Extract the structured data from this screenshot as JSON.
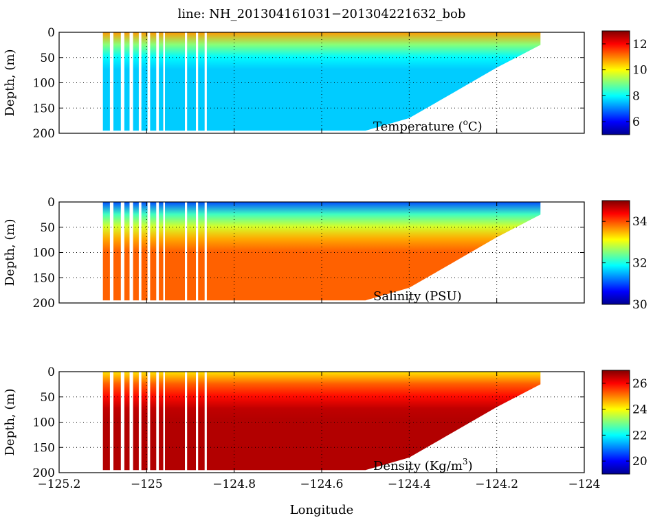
{
  "title": "line: NH_201304161031−201304221632_bob",
  "xlabel": "Longitude",
  "chart_data": [
    {
      "type": "heatmap",
      "variable": "Temperature",
      "label": "Temperature (°C)",
      "label_main": "Temperature (",
      "label_sup": "o",
      "label_tail": "C)",
      "ylabel": "Depth, (m)",
      "xlim": [
        -125.2,
        -124.0
      ],
      "ylim": [
        200,
        0
      ],
      "xticks": [
        -125.2,
        -125.0,
        -124.8,
        -124.6,
        -124.4,
        -124.2,
        -124.0
      ],
      "xtick_labels": [
        "−125.2",
        "−125",
        "−124.8",
        "−124.6",
        "−124.4",
        "−124.2",
        "−124"
      ],
      "yticks": [
        0,
        50,
        100,
        150,
        200
      ],
      "ytick_labels": [
        "0",
        "50",
        "100",
        "150",
        "200"
      ],
      "colorbar": {
        "range": [
          5,
          13
        ],
        "ticks": [
          6,
          8,
          10,
          12
        ],
        "tick_labels": [
          "6",
          "8",
          "10",
          "12"
        ]
      },
      "surface_value": 10.8,
      "deep_value": 7.6,
      "gradient_depth": 60
    },
    {
      "type": "heatmap",
      "variable": "Salinity",
      "label": "Salinity (PSU)",
      "label_main": "Salinity (PSU)",
      "label_sup": "",
      "label_tail": "",
      "ylabel": "Depth, (m)",
      "xlim": [
        -125.2,
        -124.0
      ],
      "ylim": [
        200,
        0
      ],
      "xticks": [
        -125.2,
        -125.0,
        -124.8,
        -124.6,
        -124.4,
        -124.2,
        -124.0
      ],
      "xtick_labels": [
        "−125.2",
        "−125",
        "−124.8",
        "−124.6",
        "−124.4",
        "−124.2",
        "−124"
      ],
      "yticks": [
        0,
        50,
        100,
        150,
        200
      ],
      "ytick_labels": [
        "0",
        "50",
        "100",
        "150",
        "200"
      ],
      "colorbar": {
        "range": [
          30,
          35
        ],
        "ticks": [
          30,
          32,
          34
        ],
        "tick_labels": [
          "30",
          "32",
          "34"
        ]
      },
      "surface_value": 31.0,
      "deep_value": 33.9,
      "gradient_depth": 90
    },
    {
      "type": "heatmap",
      "variable": "Density",
      "label": "Density (Kg/m³)",
      "label_main": "Density (Kg/m",
      "label_sup": "3",
      "label_tail": ")",
      "ylabel": "Depth, (m)",
      "xlim": [
        -125.2,
        -124.0
      ],
      "ylim": [
        200,
        0
      ],
      "xticks": [
        -125.2,
        -125.0,
        -124.8,
        -124.6,
        -124.4,
        -124.2,
        -124.0
      ],
      "xtick_labels": [
        "−125.2",
        "−125",
        "−124.8",
        "−124.6",
        "−124.4",
        "−124.2",
        "−124"
      ],
      "yticks": [
        0,
        50,
        100,
        150,
        200
      ],
      "ytick_labels": [
        "0",
        "50",
        "100",
        "150",
        "200"
      ],
      "colorbar": {
        "range": [
          19,
          27
        ],
        "ticks": [
          20,
          22,
          24,
          26
        ],
        "tick_labels": [
          "20",
          "22",
          "24",
          "26"
        ]
      },
      "surface_value": 24.2,
      "deep_value": 26.6,
      "gradient_depth": 80
    }
  ],
  "section": {
    "lon_range": [
      -125.1,
      -124.1
    ],
    "bottom_profile": [
      {
        "lon": -125.1,
        "depth": 195
      },
      {
        "lon": -124.5,
        "depth": 195
      },
      {
        "lon": -124.4,
        "depth": 170
      },
      {
        "lon": -124.3,
        "depth": 120
      },
      {
        "lon": -124.2,
        "depth": 70
      },
      {
        "lon": -124.1,
        "depth": 25
      }
    ],
    "gaps": [
      {
        "lon": -125.08,
        "width": 0.008
      },
      {
        "lon": -125.055,
        "width": 0.008
      },
      {
        "lon": -125.035,
        "width": 0.008
      },
      {
        "lon": -125.015,
        "width": 0.006
      },
      {
        "lon": -124.995,
        "width": 0.006
      },
      {
        "lon": -124.975,
        "width": 0.006
      },
      {
        "lon": -124.96,
        "width": 0.004
      },
      {
        "lon": -124.91,
        "width": 0.005
      },
      {
        "lon": -124.885,
        "width": 0.005
      },
      {
        "lon": -124.865,
        "width": 0.005
      }
    ]
  }
}
